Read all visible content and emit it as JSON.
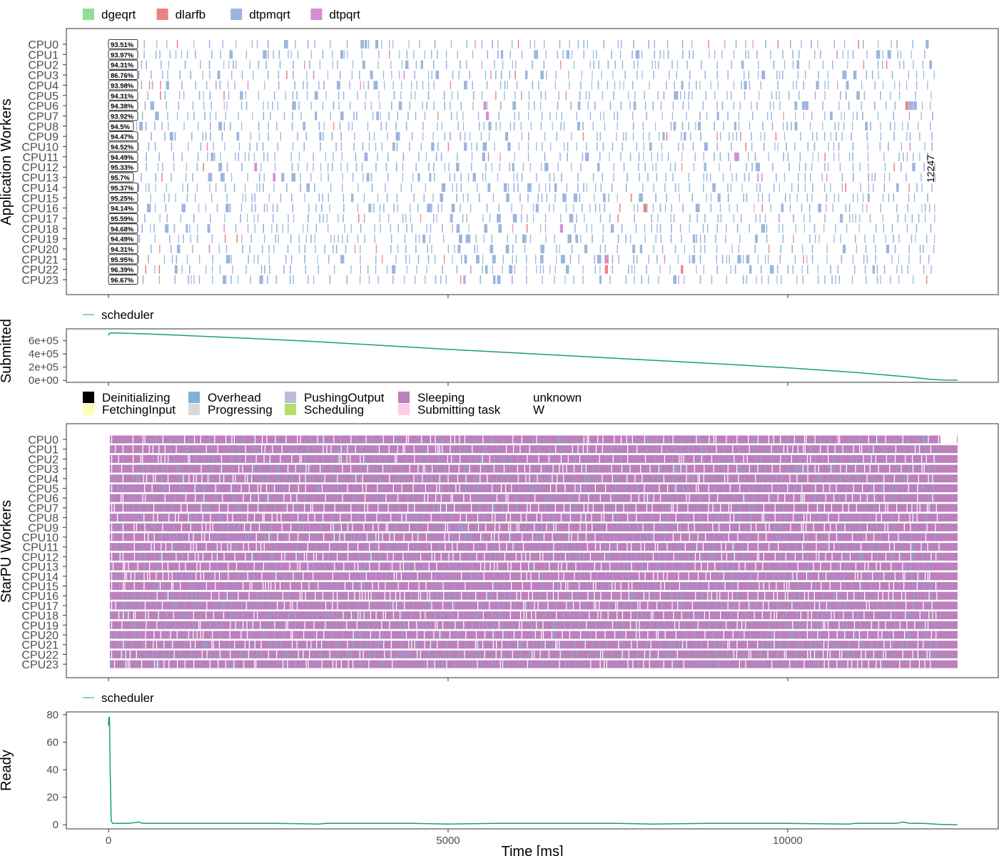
{
  "chart_data": [
    {
      "type": "gantt",
      "panel": "application_workers",
      "ylabel": "Application Workers",
      "legend": {
        "placement": "top-left",
        "entries": [
          {
            "name": "dgeqrt",
            "color": "#90DE97"
          },
          {
            "name": "dlarfb",
            "color": "#F08080"
          },
          {
            "name": "dtpmqrt",
            "color": "#9BB5DE"
          },
          {
            "name": "dtpqrt",
            "color": "#D48ED4"
          }
        ]
      },
      "workers": [
        "CPU0",
        "CPU1",
        "CPU2",
        "CPU3",
        "CPU4",
        "CPU5",
        "CPU6",
        "CPU7",
        "CPU8",
        "CPU9",
        "CPU10",
        "CPU11",
        "CPU12",
        "CPU13",
        "CPU14",
        "CPU15",
        "CPU16",
        "CPU17",
        "CPU18",
        "CPU19",
        "CPU20",
        "CPU21",
        "CPU22",
        "CPU23"
      ],
      "efficiency_labels": [
        "93.51%",
        "93.97%",
        "94.31%",
        "86.76%",
        "93.98%",
        "94.31%",
        "94.38%",
        "93.92%",
        "94.5%",
        "94.47%",
        "94.52%",
        "94.49%",
        "95.33%",
        "95.7%",
        "95.37%",
        "95.25%",
        "94.14%",
        "95.59%",
        "94.68%",
        "94.49%",
        "94.31%",
        "95.95%",
        "96.39%",
        "96.67%"
      ],
      "makespan_label": "12247",
      "makespan": 12247,
      "xlim": [
        -620,
        13100
      ],
      "xticks": [
        0,
        5000,
        10000
      ],
      "grid": false
    },
    {
      "type": "line",
      "panel": "submitted",
      "ylabel": "Submitted",
      "legend": {
        "placement": "top-left",
        "entries": [
          {
            "name": "scheduler",
            "color": "#1B9E77"
          }
        ]
      },
      "x": [
        0,
        10,
        60,
        500,
        1000,
        2000,
        3000,
        4000,
        5000,
        6000,
        7000,
        8000,
        9000,
        10000,
        11000,
        11800,
        12100,
        12300,
        12500
      ],
      "y": [
        680000,
        710000,
        720000,
        705000,
        685000,
        640000,
        590000,
        530000,
        470000,
        415000,
        360000,
        305000,
        250000,
        190000,
        120000,
        50000,
        15000,
        5000,
        3000
      ],
      "yticks": [
        "0e+00",
        "2e+05",
        "4e+05",
        "6e+05"
      ],
      "ytick_values": [
        0,
        200000,
        400000,
        600000
      ],
      "ylim": [
        -30000,
        780000
      ],
      "xlim": [
        -620,
        13100
      ]
    },
    {
      "type": "gantt",
      "panel": "starpu_workers",
      "ylabel": "StarPU Workers",
      "legend": {
        "placement": "top-left",
        "entries": [
          {
            "name": "Deinitializing",
            "color": "#000000"
          },
          {
            "name": "FetchingInput",
            "color": "#FFFFB3"
          },
          {
            "name": "Overhead",
            "color": "#7FB2D5"
          },
          {
            "name": "Progressing",
            "color": "#D9D9D9"
          },
          {
            "name": "PushingOutput",
            "color": "#BEBADA"
          },
          {
            "name": "Scheduling",
            "color": "#B3DE69"
          },
          {
            "name": "Sleeping",
            "color": "#BC80BD"
          },
          {
            "name": "Submitting task",
            "color": "#FCCDE5"
          },
          {
            "name": "unknown",
            "color": "#FFFFFF"
          },
          {
            "name": "W",
            "color": "#FFFFFF"
          }
        ]
      },
      "workers": [
        "CPU0",
        "CPU1",
        "CPU2",
        "CPU3",
        "CPU4",
        "CPU5",
        "CPU6",
        "CPU7",
        "CPU8",
        "CPU9",
        "CPU10",
        "CPU11",
        "CPU12",
        "CPU13",
        "CPU14",
        "CPU15",
        "CPU16",
        "CPU17",
        "CPU18",
        "CPU19",
        "CPU20",
        "CPU21",
        "CPU22",
        "CPU23"
      ],
      "state_end": 12247,
      "xlim": [
        -620,
        13100
      ],
      "xticks": [
        0,
        5000,
        10000
      ]
    },
    {
      "type": "line",
      "panel": "ready",
      "ylabel": "Ready",
      "xlabel": "Time [ms]",
      "legend": {
        "placement": "top-left",
        "entries": [
          {
            "name": "scheduler",
            "color": "#1B9E77"
          }
        ]
      },
      "x": [
        0,
        5,
        15,
        25,
        40,
        60,
        100,
        300,
        450,
        500,
        800,
        1200,
        1800,
        2500,
        3100,
        3200,
        3800,
        4500,
        5000,
        5700,
        6800,
        7500,
        8000,
        8800,
        9500,
        10000,
        10900,
        11000,
        11600,
        11700,
        11800,
        12000,
        12247,
        12500
      ],
      "y": [
        72,
        78,
        78,
        40,
        3,
        1,
        1,
        1,
        2,
        1,
        1,
        1,
        1,
        1,
        0.5,
        1,
        1,
        1,
        0.5,
        1,
        1,
        1,
        0.5,
        1,
        1,
        1,
        0.5,
        1,
        1,
        2,
        1,
        1,
        0.2,
        0
      ],
      "yticks": [
        0,
        20,
        40,
        60,
        80
      ],
      "ylim": [
        -3,
        82
      ],
      "xlim": [
        -620,
        13100
      ],
      "xticks": [
        0,
        5000,
        10000
      ]
    }
  ]
}
